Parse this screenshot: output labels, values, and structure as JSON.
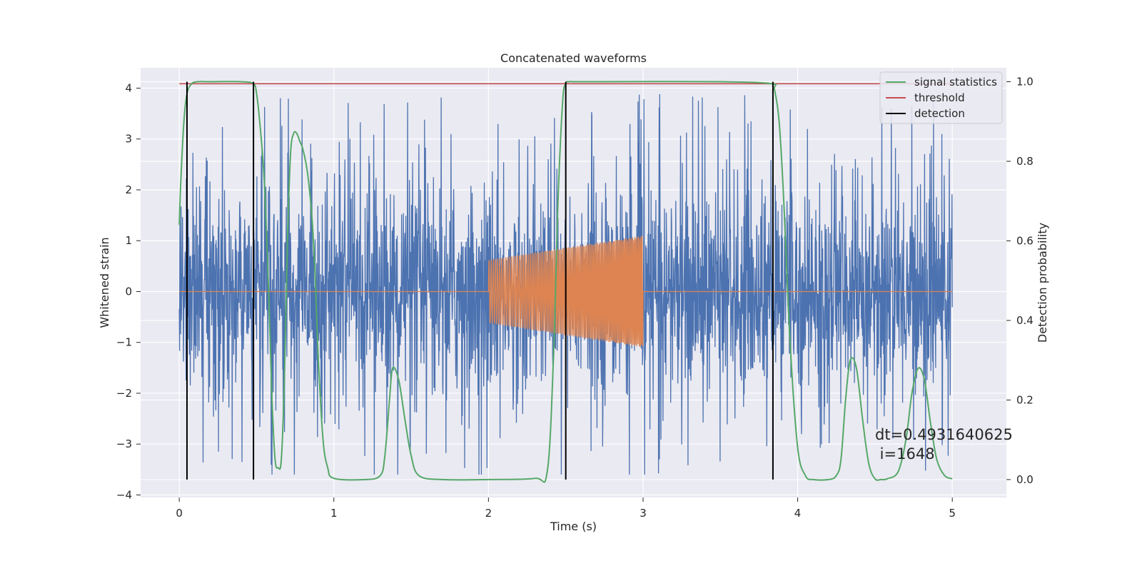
{
  "chart_data": {
    "type": "line",
    "title": "Concatenated waveforms",
    "xlabel": "Time (s)",
    "ylabel": "Whitened strain",
    "ylabel_right": "Detection probability",
    "xlim": [
      -0.25,
      5.35
    ],
    "ylim": [
      -4.05,
      4.4
    ],
    "ylim_right": [
      -0.045,
      1.035
    ],
    "x_ticks": [
      "0",
      "1",
      "2",
      "3",
      "4",
      "5"
    ],
    "y_ticks": [
      "4",
      "3",
      "2",
      "1",
      "0",
      "−1",
      "−2",
      "−3",
      "−4"
    ],
    "y_ticks_right": [
      "1.0",
      "0.8",
      "0.6",
      "0.4",
      "0.2",
      "0.0"
    ],
    "grid": true,
    "legend_position": "top-right",
    "legend": [
      "signal statistics",
      "threshold",
      "detection"
    ],
    "colors": {
      "background": "#EAEAF2",
      "grid": "#FFFFFF",
      "strain": "#4C72B0",
      "injection": "#DD8452",
      "signal_statistics": "#55A868",
      "threshold": "#C44E52",
      "detection": "#000000"
    },
    "series": [
      {
        "name": "strain",
        "axis": "left",
        "x_range": [
          0,
          5
        ],
        "noise_amplitude": 1.35,
        "noise_peak": 3.9
      },
      {
        "name": "injection",
        "axis": "left",
        "x_range": [
          0,
          5
        ],
        "active_range": [
          2,
          3
        ],
        "amplitude_start": 0.62,
        "amplitude_end": 1.1
      },
      {
        "name": "signal statistics",
        "axis": "right",
        "x": [
          0,
          0.01,
          0.03,
          0.05,
          0.08,
          0.12,
          0.2,
          0.4,
          0.48,
          0.5,
          0.52,
          0.55,
          0.58,
          0.6,
          0.62,
          0.64,
          0.66,
          0.68,
          0.7,
          0.72,
          0.74,
          0.76,
          0.78,
          0.8,
          0.83,
          0.86,
          0.88,
          0.9,
          0.93,
          0.96,
          1.0,
          1.2,
          1.3,
          1.33,
          1.36,
          1.38,
          1.42,
          1.46,
          1.5,
          1.55,
          1.7,
          2.0,
          2.3,
          2.38,
          2.42,
          2.45,
          2.48,
          2.5,
          2.52,
          2.56,
          2.7,
          3.5,
          3.83,
          3.85,
          3.88,
          3.91,
          3.95,
          4.0,
          4.05,
          4.1,
          4.2,
          4.25,
          4.28,
          4.31,
          4.34,
          4.38,
          4.42,
          4.46,
          4.5,
          4.54,
          4.58,
          4.65,
          4.7,
          4.74,
          4.78,
          4.82,
          4.86,
          4.9,
          4.95,
          5.0
        ],
        "y": [
          0.64,
          0.75,
          0.9,
          0.97,
          0.995,
          1.0,
          1.0,
          1.0,
          0.995,
          0.97,
          0.9,
          0.75,
          0.45,
          0.2,
          0.05,
          0.03,
          0.05,
          0.25,
          0.6,
          0.82,
          0.87,
          0.87,
          0.85,
          0.83,
          0.77,
          0.65,
          0.5,
          0.3,
          0.1,
          0.03,
          0.003,
          0.0,
          0.01,
          0.06,
          0.2,
          0.28,
          0.25,
          0.15,
          0.06,
          0.01,
          0.0,
          0.0,
          0.003,
          0.02,
          0.3,
          0.7,
          0.95,
          0.995,
          1.0,
          1.0,
          1.0,
          1.0,
          0.995,
          0.98,
          0.9,
          0.7,
          0.35,
          0.08,
          0.01,
          0.0,
          0.0,
          0.01,
          0.05,
          0.2,
          0.3,
          0.28,
          0.15,
          0.04,
          0.002,
          0.0,
          0.002,
          0.02,
          0.1,
          0.22,
          0.28,
          0.25,
          0.14,
          0.05,
          0.01,
          0.002
        ]
      },
      {
        "name": "threshold",
        "axis": "right",
        "x": [
          0,
          5
        ],
        "y": [
          0.995,
          0.995
        ]
      },
      {
        "name": "detection",
        "axis": "right",
        "x": [
          0.05,
          0.48,
          2.5,
          3.84
        ],
        "y_range": [
          0.0,
          1.0
        ]
      }
    ],
    "annotation": [
      "dt=0.4931640625",
      " i=1648"
    ]
  }
}
